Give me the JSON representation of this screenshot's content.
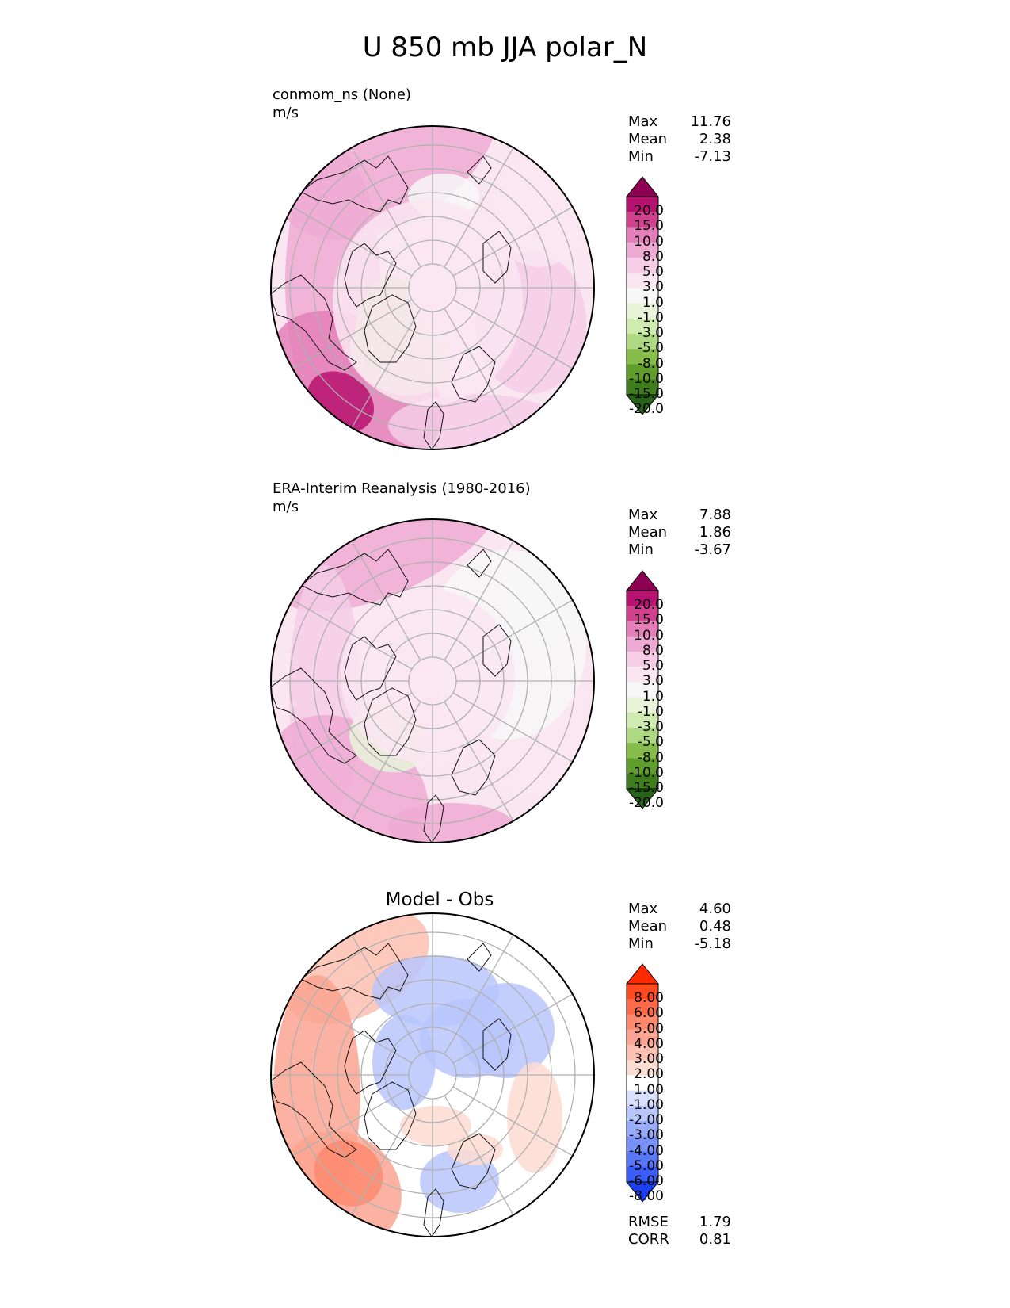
{
  "title": "U 850 mb JJA polar_N",
  "panels": [
    {
      "id": "test",
      "name": "conmom_ns (None)",
      "units": "m/s",
      "stats": {
        "max_label": "Max",
        "max": "11.76",
        "mean_label": "Mean",
        "mean": "2.38",
        "min_label": "Min",
        "min": "-7.13"
      }
    },
    {
      "id": "ref",
      "name": "ERA-Interim Reanalysis (1980-2016)",
      "units": "m/s",
      "stats": {
        "max_label": "Max",
        "max": "7.88",
        "mean_label": "Mean",
        "mean": "1.86",
        "min_label": "Min",
        "min": "-3.67"
      }
    },
    {
      "id": "diff",
      "name": "Model - Obs",
      "units": "",
      "stats": {
        "max_label": "Max",
        "max": "4.60",
        "mean_label": "Mean",
        "mean": "0.48",
        "min_label": "Min",
        "min": "-5.18"
      }
    }
  ],
  "diff_metrics": {
    "rmse_label": "RMSE",
    "rmse": "1.79",
    "corr_label": "CORR",
    "corr": "0.81"
  },
  "chart_data": [
    {
      "type": "heatmap",
      "projection": "north-polar-stereographic",
      "title": "conmom_ns (None)",
      "units": "m/s",
      "colorbar_levels": [
        "20.0",
        "15.0",
        "10.0",
        "8.0",
        "5.0",
        "3.0",
        "1.0",
        "-1.0",
        "-3.0",
        "-5.0",
        "-8.0",
        "-10.0",
        "-15.0",
        "-20.0"
      ],
      "colorbar_colors": [
        "#8e0152",
        "#b5136f",
        "#d0418e",
        "#e47fb9",
        "#eeaad3",
        "#f5cde7",
        "#fae6f1",
        "#f7f7f7",
        "#e8f3d9",
        "#d0ebb0",
        "#aed982",
        "#86bc49",
        "#5f9d2d",
        "#3f7e1c",
        "#276419"
      ],
      "stats": {
        "max": 11.76,
        "mean": 2.38,
        "min": -7.13
      }
    },
    {
      "type": "heatmap",
      "projection": "north-polar-stereographic",
      "title": "ERA-Interim Reanalysis (1980-2016)",
      "units": "m/s",
      "colorbar_levels": [
        "20.0",
        "15.0",
        "10.0",
        "8.0",
        "5.0",
        "3.0",
        "1.0",
        "-1.0",
        "-3.0",
        "-5.0",
        "-8.0",
        "-10.0",
        "-15.0",
        "-20.0"
      ],
      "colorbar_colors": [
        "#8e0152",
        "#b5136f",
        "#d0418e",
        "#e47fb9",
        "#eeaad3",
        "#f5cde7",
        "#fae6f1",
        "#f7f7f7",
        "#e8f3d9",
        "#d0ebb0",
        "#aed982",
        "#86bc49",
        "#5f9d2d",
        "#3f7e1c",
        "#276419"
      ],
      "stats": {
        "max": 7.88,
        "mean": 1.86,
        "min": -3.67
      }
    },
    {
      "type": "heatmap",
      "projection": "north-polar-stereographic",
      "title": "Model - Obs",
      "colorbar_levels": [
        "8.00",
        "6.00",
        "5.00",
        "4.00",
        "3.00",
        "2.00",
        "1.00",
        "-1.00",
        "-2.00",
        "-3.00",
        "-4.00",
        "-5.00",
        "-6.00",
        "-8.00"
      ],
      "colorbar_colors": [
        "#ff2a00",
        "#ff4a22",
        "#ff6a48",
        "#fd8a6f",
        "#fca592",
        "#fdc0b1",
        "#fddcd2",
        "#ffffff",
        "#d8e0fc",
        "#b8c6fb",
        "#98acfa",
        "#7892f9",
        "#5878f8",
        "#3a5cf7",
        "#1c40f6"
      ],
      "stats": {
        "max": 4.6,
        "mean": 0.48,
        "min": -5.18,
        "rmse": 1.79,
        "corr": 0.81
      }
    }
  ]
}
